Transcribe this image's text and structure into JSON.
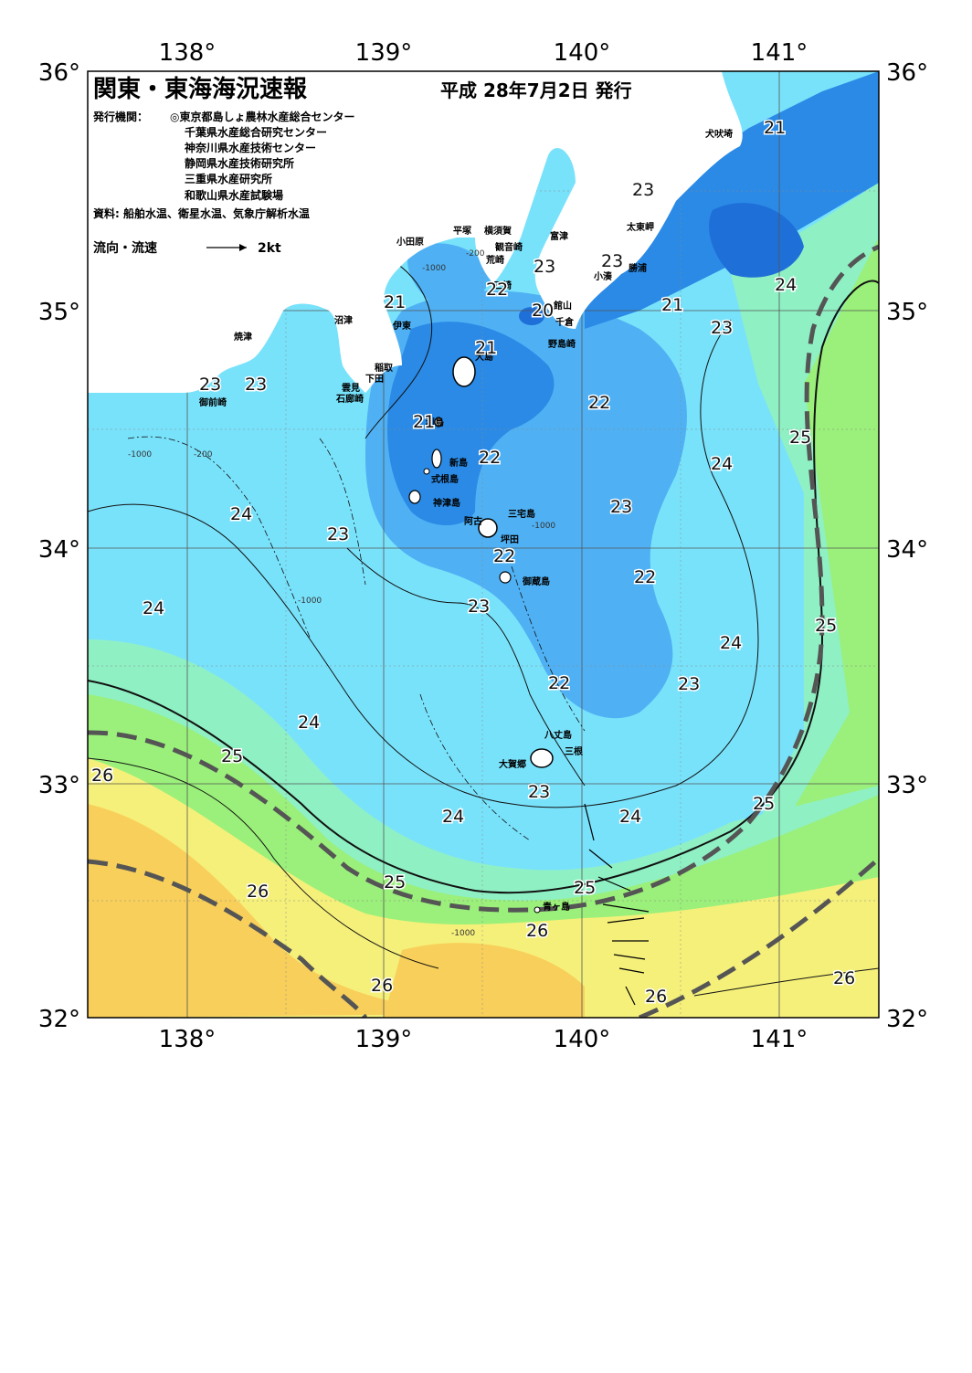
{
  "title": "関東・東海海況速報",
  "issue_date": "平成 28年7月2日 発行",
  "agencies_label": "発行機関：",
  "agencies": [
    "◎東京都島しょ農林水産総合センター",
    "千葉県水産総合研究センター",
    "神奈川県水産技術センター",
    "静岡県水産技術研究所",
    "三重県水産研究所",
    "和歌山県水産試験場"
  ],
  "sources": "資料: 船舶水温、衛星水温、気象庁解析水温",
  "current_legend": {
    "label": "流向・流速",
    "scale": "2kt"
  },
  "axes": {
    "lon_ticks": [
      "138°",
      "139°",
      "140°",
      "141°"
    ],
    "lat_ticks": [
      "36°",
      "35°",
      "34°",
      "33°",
      "32°"
    ]
  },
  "place_names": [
    "犬吠埼",
    "太東岬",
    "勝浦",
    "小湊",
    "館山",
    "千倉",
    "野島崎",
    "富津",
    "横須賀",
    "観音崎",
    "荒崎",
    "三崎",
    "平塚",
    "小田原",
    "沼津",
    "伊東",
    "稲取",
    "下田",
    "雲見",
    "石廊崎",
    "焼津",
    "御前崎",
    "大島",
    "利島",
    "新島",
    "式根島",
    "神津島",
    "三宅島",
    "坪田",
    "阿古",
    "御蔵島",
    "八丈島",
    "三根",
    "大賀郷",
    "青ヶ島"
  ],
  "isotherm_labels": [
    "20",
    "21",
    "21",
    "21",
    "21",
    "21",
    "22",
    "22",
    "22",
    "22",
    "22",
    "22",
    "23",
    "23",
    "23",
    "23",
    "23",
    "23",
    "23",
    "23",
    "23",
    "23",
    "23",
    "24",
    "24",
    "24",
    "24",
    "24",
    "24",
    "24",
    "24",
    "25",
    "25",
    "25",
    "25",
    "25",
    "25",
    "26",
    "26",
    "26",
    "26",
    "26",
    "26"
  ],
  "depth_labels": [
    "-200",
    "-1000"
  ],
  "colors": {
    "t20": "#1f6fd8",
    "t21": "#2a8ae6",
    "t22": "#4fb1f4",
    "t23": "#79e2fb",
    "t24": "#8ff0c4",
    "t25": "#9af07a",
    "t26": "#f5f07a",
    "t27": "#f8cf5a",
    "land": "#ffffff",
    "kuroshio_axis": "#555555"
  }
}
